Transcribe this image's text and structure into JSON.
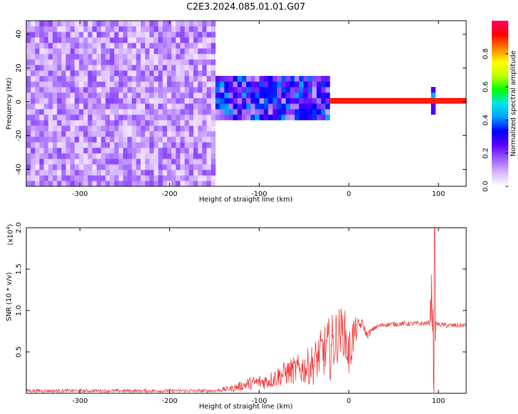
{
  "figure": {
    "title": "C2E3.2024.085.01.01.G07"
  },
  "chart_data": [
    {
      "type": "heatmap",
      "title": "C2E3.2024.085.01.01.G07",
      "xlabel": "Height of straight line (km)",
      "ylabel": "Frequency (Hz)",
      "xlim": [
        -360,
        131
      ],
      "ylim": [
        -50,
        48
      ],
      "xticks": [
        -300,
        -200,
        -100,
        0,
        100
      ],
      "xtick_labels": [
        "-300",
        "-200",
        "-100",
        "0",
        "100"
      ],
      "yticks": [
        -40,
        -20,
        0,
        20,
        40
      ],
      "ytick_labels": [
        "-40",
        "-20",
        "0",
        "20",
        "40"
      ],
      "colorbar": {
        "label": "Normalized spectral amplitude",
        "range": [
          0,
          1
        ],
        "ticks": [
          0.0,
          0.2,
          0.4,
          0.6,
          0.8
        ],
        "tick_labels": [
          "0.0",
          "0.2",
          "0.4",
          "0.6",
          "0.8"
        ],
        "colormap": "rainbow (white-lavender-purple-blue-cyan-green-yellow-red-magenta)"
      },
      "description_regions": [
        {
          "x_range": [
            -360,
            -150
          ],
          "f_range": [
            -50,
            48
          ],
          "amplitude": 0.1,
          "pattern": "broadband noise"
        },
        {
          "x_range": [
            -150,
            -20
          ],
          "f_range": [
            -12,
            14
          ],
          "amplitude": 0.25,
          "pattern": "spreading signal centered at 0 Hz"
        },
        {
          "x_range": [
            -20,
            131
          ],
          "f_range": [
            -2,
            2
          ],
          "amplitude": 0.9,
          "pattern": "narrow carrier line at 0 Hz"
        },
        {
          "x_range": [
            90,
            96
          ],
          "f_range": [
            -8,
            8
          ],
          "amplitude": 0.35,
          "pattern": "local disturbance"
        }
      ],
      "grid": false,
      "grid_shape": {
        "cols": 100,
        "rows": 30
      },
      "colorbar_stops": [
        "#ffffff",
        "#d8b7ff",
        "#9b5cff",
        "#5a00ff",
        "#0000ff",
        "#00a0ff",
        "#00e5e5",
        "#00ff00",
        "#bfff00",
        "#ffff00",
        "#ff8000",
        "#ff0000",
        "#ff0066"
      ]
    },
    {
      "type": "line",
      "xlabel": "Height of straight line (km)",
      "ylabel": "SNR (10 * v/v)",
      "y_multiplier_label": "(x10",
      "y_multiplier_exp": "4",
      "y_multiplier_close": ")",
      "xlim": [
        -360,
        131
      ],
      "ylim": [
        0,
        2.0
      ],
      "xticks": [
        -300,
        -200,
        -100,
        0,
        100
      ],
      "xtick_labels": [
        "-300",
        "-200",
        "-100",
        "0",
        "100"
      ],
      "yticks": [
        0.5,
        1.0,
        1.5,
        2.0
      ],
      "ytick_labels": [
        "0.5",
        "1.0",
        "1.5",
        "2.0"
      ],
      "color": "#ee3333",
      "grid": false,
      "series": [
        {
          "x": [
            -360,
            -300,
            -200,
            -150,
            -130,
            -110,
            -90,
            -70,
            -50,
            -40,
            -30,
            -20,
            -10,
            -5,
            0,
            5,
            10,
            15,
            20,
            30,
            40,
            60,
            80,
            90,
            93,
            95,
            97,
            100,
            110,
            131
          ],
          "y": [
            0.03,
            0.03,
            0.03,
            0.03,
            0.06,
            0.12,
            0.15,
            0.25,
            0.3,
            0.35,
            0.5,
            0.55,
            0.75,
            0.75,
            0.45,
            0.7,
            0.8,
            0.85,
            0.7,
            0.8,
            0.83,
            0.84,
            0.84,
            0.85,
            1.25,
            0.1,
            0.85,
            0.83,
            0.82,
            0.82
          ],
          "noise_amplitude": [
            0.02,
            0.02,
            0.02,
            0.02,
            0.04,
            0.08,
            0.1,
            0.15,
            0.2,
            0.25,
            0.3,
            0.4,
            0.3,
            0.3,
            0.3,
            0.25,
            0.1,
            0.05,
            0.05,
            0.03,
            0.03,
            0.03,
            0.03,
            0.03,
            0.4,
            0.3,
            0.03,
            0.03,
            0.03,
            0.03
          ],
          "peak": {
            "x": 96,
            "y": 2.0
          },
          "samples": 900
        }
      ]
    }
  ]
}
